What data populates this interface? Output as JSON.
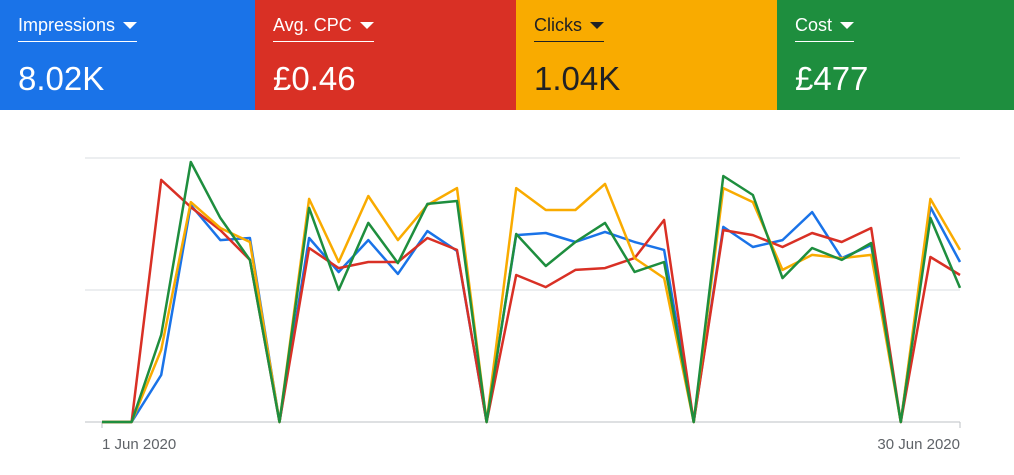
{
  "metrics": [
    {
      "label": "Impressions",
      "value": "8.02K",
      "color": "#1a73e8",
      "text_color": "#ffffff"
    },
    {
      "label": "Avg. CPC",
      "value": "£0.46",
      "color": "#d93025",
      "text_color": "#ffffff"
    },
    {
      "label": "Clicks",
      "value": "1.04K",
      "color": "#f9ab00",
      "text_color": "#202124"
    },
    {
      "label": "Cost",
      "value": "£477",
      "color": "#1e8e3e",
      "text_color": "#ffffff"
    }
  ],
  "chart_data": {
    "type": "line",
    "categories": [
      "1 Jun 2020",
      null,
      null,
      null,
      null,
      null,
      null,
      null,
      null,
      null,
      null,
      null,
      null,
      null,
      null,
      null,
      null,
      null,
      null,
      null,
      null,
      null,
      null,
      null,
      null,
      null,
      null,
      null,
      null,
      "30 Jun 2020"
    ],
    "series": [
      {
        "color": "#1a73e8",
        "values": [
          0,
          0,
          17.8,
          82.2,
          68.9,
          69.7,
          0,
          69.7,
          56.8,
          68.9,
          56.1,
          72.3,
          64.8,
          0,
          70.8,
          71.6,
          68.2,
          72,
          68.2,
          65.2,
          0,
          73.9,
          66.3,
          68.9,
          79.5,
          62.1,
          67,
          0,
          81.4,
          60.6
        ]
      },
      {
        "color": "#d93025",
        "values": [
          0,
          0,
          91.7,
          81.4,
          72.7,
          61.4,
          0,
          65.9,
          58.3,
          60.6,
          60.6,
          69.7,
          65.2,
          0,
          55.7,
          51.1,
          57.6,
          58.3,
          62.1,
          76.5,
          0,
          72.7,
          70.8,
          66.3,
          71.6,
          68.2,
          73.5,
          0,
          62.5,
          55.7
        ]
      },
      {
        "color": "#f9ab00",
        "values": [
          0,
          0,
          27.3,
          83.3,
          73.5,
          68.2,
          0,
          84.5,
          60.6,
          85.6,
          68.9,
          82.2,
          88.6,
          0,
          88.6,
          80.3,
          80.3,
          90.2,
          62.1,
          54.5,
          0,
          88.6,
          83.3,
          57.6,
          63.3,
          62.1,
          63.3,
          0,
          84.5,
          65.2
        ]
      },
      {
        "color": "#1e8e3e",
        "values": [
          0,
          0,
          33,
          98.5,
          77.3,
          61.4,
          0,
          81.1,
          50,
          75.4,
          60.2,
          82.6,
          83.7,
          0,
          71.2,
          59.1,
          68.2,
          75.4,
          56.8,
          60.6,
          0,
          93.2,
          86,
          54.5,
          65.9,
          61.4,
          67.8,
          0,
          77.3,
          50.8
        ]
      }
    ],
    "ylim": [
      0,
      100
    ],
    "yticks": [
      0,
      50,
      100
    ],
    "grid": true
  }
}
